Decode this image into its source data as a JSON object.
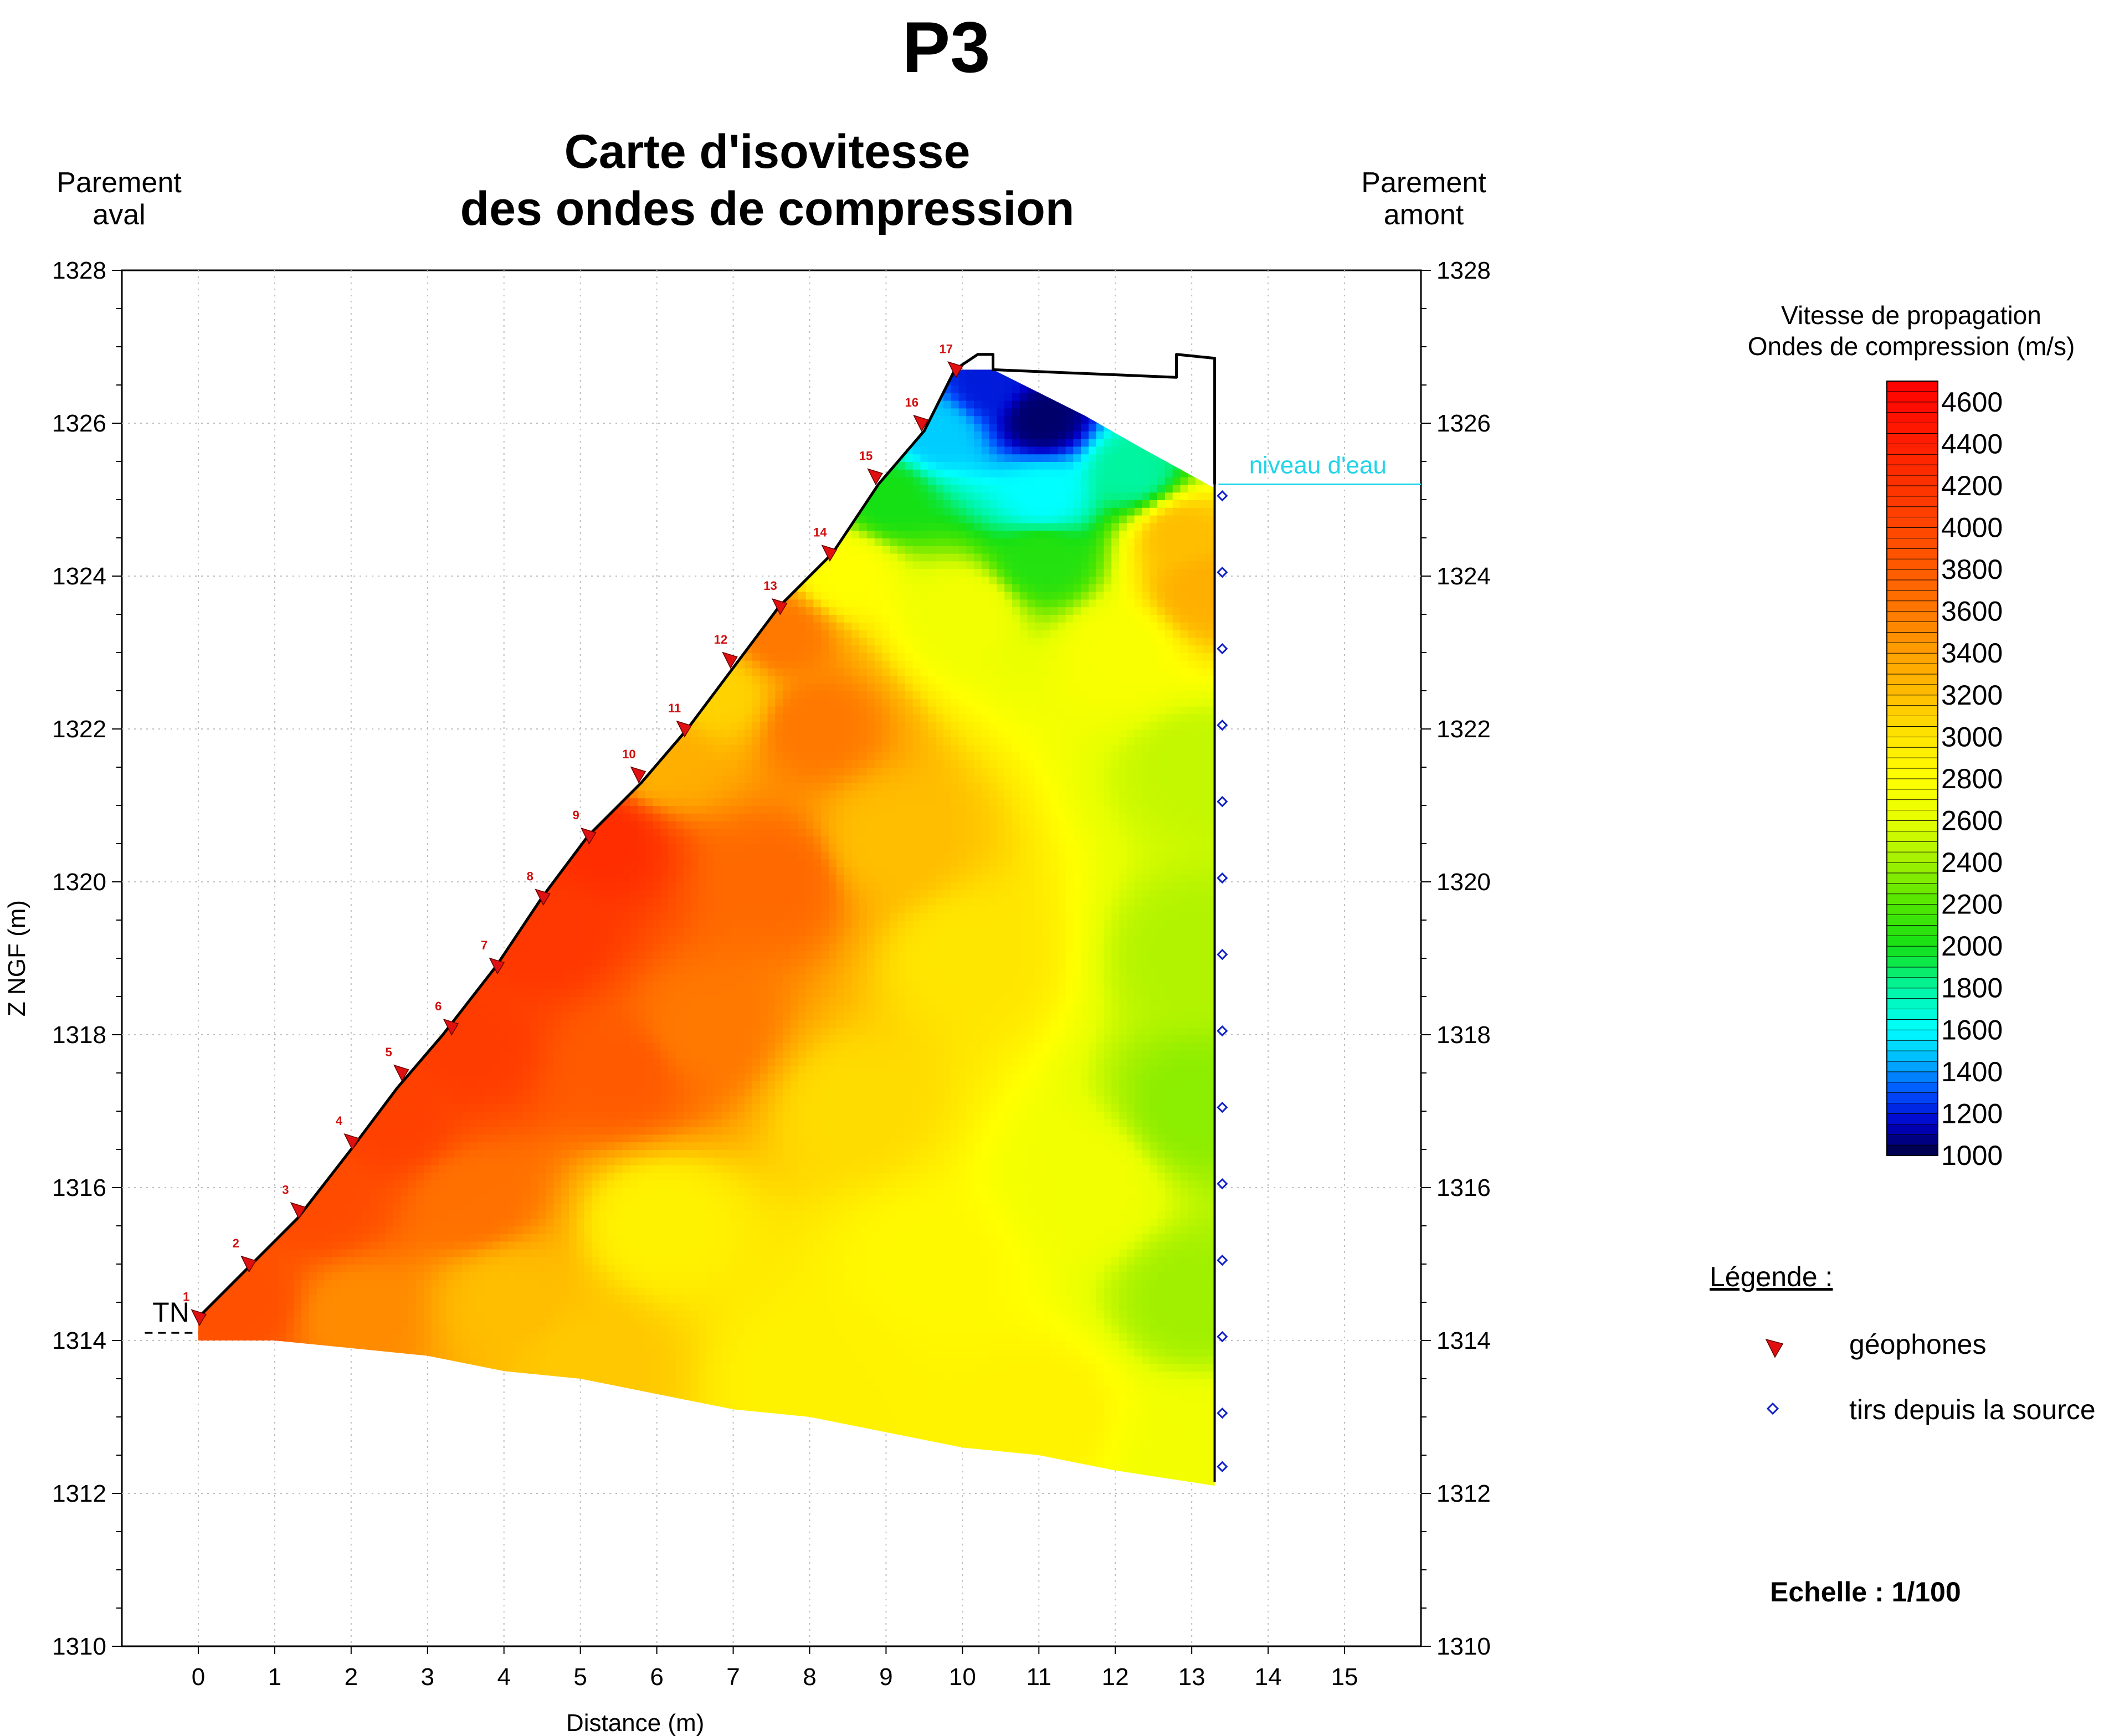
{
  "page": {
    "profile_id": "P3",
    "title_line1": "Carte d'isovitesse",
    "title_line2": "des ondes de compression",
    "left_side_line1": "Parement",
    "left_side_line2": "aval",
    "right_side_line1": "Parement",
    "right_side_line2": "amont",
    "water_level_label": "niveau d'eau",
    "ground_label": "TN",
    "scale_text": "Echelle : 1/100"
  },
  "colorbar": {
    "title_line1": "Vitesse de propagation",
    "title_line2": "Ondes de compression (m/s)",
    "ticks": [
      "4600",
      "4400",
      "4200",
      "4000",
      "3800",
      "3600",
      "3400",
      "3200",
      "3000",
      "2800",
      "2600",
      "2400",
      "2200",
      "2000",
      "1800",
      "1600",
      "1400",
      "1200",
      "1000"
    ],
    "min": 1000,
    "max": 4700,
    "stops": [
      {
        "v": 1000,
        "color": "#00003c"
      },
      {
        "v": 1150,
        "color": "#0000c8"
      },
      {
        "v": 1300,
        "color": "#0050ff"
      },
      {
        "v": 1450,
        "color": "#00b4ff"
      },
      {
        "v": 1600,
        "color": "#00ffff"
      },
      {
        "v": 1800,
        "color": "#00f5a0"
      },
      {
        "v": 2000,
        "color": "#14e014"
      },
      {
        "v": 2200,
        "color": "#50e600"
      },
      {
        "v": 2400,
        "color": "#a0f000"
      },
      {
        "v": 2600,
        "color": "#e6ff00"
      },
      {
        "v": 2800,
        "color": "#ffff00"
      },
      {
        "v": 3000,
        "color": "#ffe600"
      },
      {
        "v": 3200,
        "color": "#ffbe00"
      },
      {
        "v": 3400,
        "color": "#ffa000"
      },
      {
        "v": 3600,
        "color": "#ff7800"
      },
      {
        "v": 3800,
        "color": "#ff5a00"
      },
      {
        "v": 4000,
        "color": "#ff4600"
      },
      {
        "v": 4300,
        "color": "#ff2800"
      },
      {
        "v": 4700,
        "color": "#ff0000"
      }
    ]
  },
  "legend": {
    "title": "Légende :",
    "geophones_label": "géophones",
    "shots_label": "tirs depuis la source",
    "geophone_color": "#e01010",
    "shot_color": "#1020c8"
  },
  "chart_data": {
    "type": "heatmap",
    "xlabel": "Distance (m)",
    "ylabel": "Z NGF (m)",
    "xlim": [
      -1,
      16
    ],
    "ylim": [
      1310,
      1328
    ],
    "x_ticks": [
      0,
      1,
      2,
      3,
      4,
      5,
      6,
      7,
      8,
      9,
      10,
      11,
      12,
      13,
      14,
      15
    ],
    "y_ticks": [
      1310,
      1312,
      1314,
      1316,
      1318,
      1320,
      1322,
      1324,
      1326,
      1328
    ],
    "grid": true,
    "water_level": 1325.2,
    "ground_level": 1314.1,
    "dam_outline": [
      [
        0,
        1314.3
      ],
      [
        0.6,
        1314.9
      ],
      [
        1.3,
        1315.6
      ],
      [
        2.0,
        1316.5
      ],
      [
        2.6,
        1317.3
      ],
      [
        3.2,
        1318.0
      ],
      [
        3.9,
        1318.9
      ],
      [
        4.5,
        1319.8
      ],
      [
        5.1,
        1320.6
      ],
      [
        5.8,
        1321.3
      ],
      [
        6.4,
        1322.0
      ],
      [
        7.0,
        1322.8
      ],
      [
        7.6,
        1323.6
      ],
      [
        8.3,
        1324.3
      ],
      [
        8.9,
        1325.2
      ],
      [
        9.5,
        1325.9
      ],
      [
        9.9,
        1326.7
      ],
      [
        10.2,
        1326.9
      ],
      [
        10.4,
        1326.9
      ],
      [
        10.4,
        1326.7
      ],
      [
        12.8,
        1326.6
      ],
      [
        12.8,
        1326.9
      ],
      [
        13.3,
        1326.85
      ],
      [
        13.3,
        1325.2
      ]
    ],
    "section_bottom": [
      [
        13.3,
        1312.1
      ],
      [
        12.0,
        1312.3
      ],
      [
        11.0,
        1312.5
      ],
      [
        10.0,
        1312.6
      ],
      [
        9.0,
        1312.8
      ],
      [
        8.0,
        1313.0
      ],
      [
        7.0,
        1313.1
      ],
      [
        6.0,
        1313.3
      ],
      [
        5.0,
        1313.5
      ],
      [
        4.0,
        1313.6
      ],
      [
        3.0,
        1313.8
      ],
      [
        2.0,
        1313.9
      ],
      [
        1.0,
        1314.0
      ],
      [
        0,
        1314.0
      ]
    ],
    "geophones": [
      {
        "n": "1",
        "x": 0.0,
        "z": 1314.3
      },
      {
        "n": "2",
        "x": 0.65,
        "z": 1315.0
      },
      {
        "n": "3",
        "x": 1.3,
        "z": 1315.7
      },
      {
        "n": "4",
        "x": 2.0,
        "z": 1316.6
      },
      {
        "n": "5",
        "x": 2.65,
        "z": 1317.5
      },
      {
        "n": "6",
        "x": 3.3,
        "z": 1318.1
      },
      {
        "n": "7",
        "x": 3.9,
        "z": 1318.9
      },
      {
        "n": "8",
        "x": 4.5,
        "z": 1319.8
      },
      {
        "n": "9",
        "x": 5.1,
        "z": 1320.6
      },
      {
        "n": "10",
        "x": 5.75,
        "z": 1321.4
      },
      {
        "n": "11",
        "x": 6.35,
        "z": 1322.0
      },
      {
        "n": "12",
        "x": 6.95,
        "z": 1322.9
      },
      {
        "n": "13",
        "x": 7.6,
        "z": 1323.6
      },
      {
        "n": "14",
        "x": 8.25,
        "z": 1324.3
      },
      {
        "n": "15",
        "x": 8.85,
        "z": 1325.3
      },
      {
        "n": "16",
        "x": 9.45,
        "z": 1326.0
      },
      {
        "n": "17",
        "x": 9.9,
        "z": 1326.7
      }
    ],
    "shots_z": [
      1325.05,
      1324.05,
      1323.05,
      1322.05,
      1321.05,
      1320.05,
      1319.05,
      1318.05,
      1317.05,
      1316.05,
      1315.05,
      1314.05,
      1313.05,
      1312.35
    ],
    "shots_x": 13.4,
    "velocity_field": [
      {
        "x": 0.5,
        "z": 1314.5,
        "v": 3900
      },
      {
        "x": 1.5,
        "z": 1315.8,
        "v": 3950
      },
      {
        "x": 2.5,
        "z": 1316.8,
        "v": 4050
      },
      {
        "x": 3.5,
        "z": 1317.8,
        "v": 4100
      },
      {
        "x": 4.5,
        "z": 1319.3,
        "v": 4150
      },
      {
        "x": 5.3,
        "z": 1320.5,
        "v": 4250
      },
      {
        "x": 6.0,
        "z": 1321.5,
        "v": 3300
      },
      {
        "x": 6.8,
        "z": 1322.4,
        "v": 3100
      },
      {
        "x": 7.6,
        "z": 1323.2,
        "v": 3600
      },
      {
        "x": 8.4,
        "z": 1324.0,
        "v": 2800
      },
      {
        "x": 9.0,
        "z": 1325.0,
        "v": 2000
      },
      {
        "x": 9.6,
        "z": 1325.8,
        "v": 1500
      },
      {
        "x": 10.3,
        "z": 1326.5,
        "v": 1200
      },
      {
        "x": 11.0,
        "z": 1326.0,
        "v": 1050
      },
      {
        "x": 11.0,
        "z": 1325.0,
        "v": 1600
      },
      {
        "x": 11.0,
        "z": 1324.2,
        "v": 2050
      },
      {
        "x": 12.2,
        "z": 1325.3,
        "v": 1800
      },
      {
        "x": 12.8,
        "z": 1324.5,
        "v": 3200
      },
      {
        "x": 13.1,
        "z": 1323.8,
        "v": 3300
      },
      {
        "x": 10.0,
        "z": 1323.5,
        "v": 2700
      },
      {
        "x": 12.0,
        "z": 1323.0,
        "v": 2750
      },
      {
        "x": 13.0,
        "z": 1321.5,
        "v": 2500
      },
      {
        "x": 13.0,
        "z": 1319.0,
        "v": 2450
      },
      {
        "x": 13.0,
        "z": 1317.0,
        "v": 2350
      },
      {
        "x": 13.0,
        "z": 1314.5,
        "v": 2400
      },
      {
        "x": 13.0,
        "z": 1312.5,
        "v": 2700
      },
      {
        "x": 11.5,
        "z": 1316.0,
        "v": 2700
      },
      {
        "x": 11.0,
        "z": 1313.0,
        "v": 2900
      },
      {
        "x": 10.0,
        "z": 1319.0,
        "v": 3000
      },
      {
        "x": 9.0,
        "z": 1320.5,
        "v": 3200
      },
      {
        "x": 8.0,
        "z": 1322.0,
        "v": 3600
      },
      {
        "x": 7.5,
        "z": 1320.0,
        "v": 3700
      },
      {
        "x": 6.5,
        "z": 1318.0,
        "v": 3600
      },
      {
        "x": 8.5,
        "z": 1317.0,
        "v": 3050
      },
      {
        "x": 6.0,
        "z": 1315.5,
        "v": 2900
      },
      {
        "x": 4.0,
        "z": 1314.5,
        "v": 3200
      },
      {
        "x": 2.0,
        "z": 1314.3,
        "v": 3500
      },
      {
        "x": 8.0,
        "z": 1313.5,
        "v": 2900
      },
      {
        "x": 5.0,
        "z": 1313.7,
        "v": 3150
      },
      {
        "x": 3.5,
        "z": 1315.8,
        "v": 3650
      },
      {
        "x": 5.5,
        "z": 1317.5,
        "v": 3800
      },
      {
        "x": 9.5,
        "z": 1315.0,
        "v": 2850
      }
    ]
  }
}
